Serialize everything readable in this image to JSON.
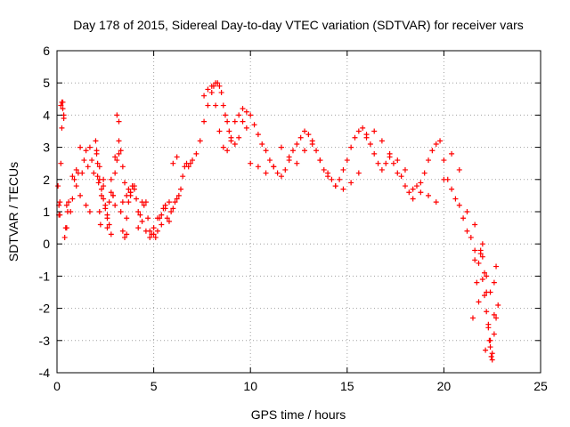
{
  "chart_data": {
    "type": "scatter",
    "title": "Day 178 of 2015, Sidereal Day-to-day VTEC variation (SDTVAR) for receiver vars",
    "xlabel": "GPS time / hours",
    "ylabel": "SDTVAR / TECUs",
    "xlim": [
      0,
      25
    ],
    "ylim": [
      -4,
      6
    ],
    "xticks": [
      "0",
      "5",
      "10",
      "15",
      "20",
      "25"
    ],
    "yticks": [
      "-4",
      "-3",
      "-2",
      "-1",
      "0",
      "1",
      "2",
      "3",
      "4",
      "5",
      "6"
    ],
    "grid": true,
    "marker": "plus",
    "color": "#ff0000",
    "series": [
      {
        "name": "SDTVAR",
        "x": [
          0.05,
          0.1,
          0.15,
          0.2,
          0.25,
          0.3,
          0.35,
          0.4,
          0.45,
          0.5,
          0.55,
          0.6,
          0.7,
          0.8,
          0.9,
          1.0,
          1.1,
          1.2,
          1.3,
          1.4,
          1.5,
          1.6,
          1.7,
          1.8,
          1.9,
          2.0,
          2.05,
          2.1,
          2.15,
          2.2,
          2.25,
          2.3,
          2.4,
          2.5,
          2.6,
          2.7,
          2.8,
          2.9,
          3.0,
          3.1,
          3.2,
          3.3,
          3.4,
          3.5,
          3.6,
          3.7,
          3.8,
          3.9,
          4.0,
          4.1,
          4.2,
          4.3,
          4.4,
          4.5,
          4.6,
          4.7,
          4.8,
          4.9,
          5.0,
          5.1,
          5.2,
          5.3,
          5.4,
          5.5,
          5.6,
          5.7,
          5.8,
          5.9,
          6.0,
          6.1,
          6.2,
          6.3,
          6.4,
          6.5,
          6.6,
          6.7,
          6.8,
          6.9,
          7.0,
          7.2,
          7.4,
          7.6,
          7.8,
          8.0,
          8.1,
          8.2,
          8.3,
          8.4,
          8.5,
          8.6,
          8.7,
          8.8,
          8.9,
          9.0,
          9.2,
          9.4,
          9.6,
          9.8,
          10.0,
          10.2,
          10.4,
          10.6,
          10.8,
          11.0,
          11.2,
          11.4,
          11.6,
          11.8,
          12.0,
          12.2,
          12.4,
          12.6,
          12.8,
          13.0,
          13.2,
          13.4,
          13.6,
          13.8,
          14.0,
          14.2,
          14.4,
          14.6,
          14.8,
          15.0,
          15.2,
          15.4,
          15.6,
          15.8,
          16.0,
          16.2,
          16.4,
          16.6,
          16.8,
          17.0,
          17.2,
          17.4,
          17.6,
          17.8,
          18.0,
          18.2,
          18.4,
          18.6,
          18.8,
          19.0,
          19.2,
          19.4,
          19.6,
          19.8,
          20.0,
          20.2,
          20.4,
          20.6,
          20.8,
          21.0,
          21.2,
          21.4,
          21.6,
          21.8,
          22.0,
          22.1,
          22.2,
          22.3,
          22.4,
          22.5,
          22.6,
          22.7,
          22.8,
          0.1,
          0.15,
          0.2,
          0.25,
          0.3,
          0.35,
          0.5,
          0.8,
          1.0,
          1.2,
          1.5,
          1.7,
          2.2,
          2.4,
          2.6,
          2.8,
          3.0,
          3.2,
          3.4,
          3.6,
          3.8,
          4.0,
          4.2,
          4.4,
          4.6,
          4.8,
          5.0,
          5.2,
          5.4,
          5.6,
          5.8,
          6.0,
          6.2,
          7.6,
          7.8,
          8.0,
          8.2,
          8.4,
          8.6,
          8.8,
          9.0,
          9.2,
          9.4,
          9.6,
          9.8,
          10.0,
          10.4,
          10.8,
          11.2,
          11.6,
          12.0,
          12.4,
          12.8,
          13.2,
          13.6,
          14.0,
          14.4,
          14.8,
          15.2,
          15.6,
          16.0,
          16.4,
          16.8,
          17.2,
          17.6,
          18.0,
          18.4,
          18.8,
          19.2,
          19.6,
          20.0,
          20.4,
          20.8,
          21.2,
          21.6,
          22.0,
          22.2,
          22.4,
          22.6,
          2.05,
          2.1,
          2.2,
          2.3,
          2.4,
          2.5,
          2.6,
          2.7,
          2.8,
          2.9,
          3.0,
          3.1,
          3.2,
          3.3,
          3.4,
          3.5,
          3.6,
          3.7,
          3.8,
          3.9,
          21.6,
          21.7,
          21.8,
          21.9,
          22.0,
          22.1,
          22.2,
          22.3,
          22.4,
          22.5,
          22.6,
          22.7,
          21.5,
          21.9,
          22.15,
          22.35,
          22.45
        ],
        "y": [
          1.8,
          1.2,
          0.9,
          4.3,
          4.4,
          4.2,
          3.9,
          0.2,
          0.5,
          1.2,
          1.0,
          1.3,
          1.0,
          1.4,
          2.0,
          1.8,
          2.2,
          3.0,
          2.2,
          2.6,
          2.9,
          2.4,
          3.0,
          2.6,
          2.2,
          3.2,
          2.8,
          2.1,
          1.9,
          1.0,
          0.6,
          1.5,
          1.8,
          1.2,
          0.5,
          1.3,
          2.0,
          1.5,
          1.2,
          4.0,
          3.8,
          1.0,
          0.4,
          0.2,
          0.8,
          1.7,
          1.5,
          1.8,
          1.7,
          1.4,
          1.0,
          0.9,
          0.7,
          1.2,
          1.3,
          0.8,
          0.4,
          0.3,
          0.3,
          0.2,
          0.4,
          0.8,
          0.9,
          1.1,
          1.2,
          0.8,
          0.7,
          1.0,
          1.1,
          1.3,
          1.4,
          1.5,
          1.7,
          2.1,
          2.4,
          2.5,
          2.4,
          2.5,
          2.6,
          2.8,
          3.2,
          3.8,
          4.3,
          4.7,
          4.9,
          5.0,
          5.0,
          4.9,
          4.7,
          4.3,
          4.0,
          3.8,
          3.5,
          3.2,
          3.1,
          3.3,
          3.8,
          4.1,
          4.0,
          3.7,
          3.4,
          3.1,
          2.9,
          2.6,
          2.4,
          2.2,
          2.1,
          2.3,
          2.6,
          2.9,
          3.1,
          3.3,
          3.5,
          3.4,
          3.2,
          2.9,
          2.6,
          2.3,
          2.2,
          2.0,
          1.8,
          2.0,
          2.3,
          2.6,
          3.0,
          3.3,
          3.5,
          3.6,
          3.4,
          3.1,
          2.8,
          2.5,
          2.3,
          2.5,
          2.8,
          2.5,
          2.2,
          2.1,
          1.8,
          1.6,
          1.7,
          1.8,
          1.9,
          2.2,
          2.6,
          2.9,
          3.1,
          3.2,
          2.6,
          2.0,
          1.7,
          1.4,
          1.2,
          0.8,
          0.4,
          0.2,
          -0.2,
          -0.6,
          -1.1,
          -1.6,
          -2.1,
          -2.6,
          -3.0,
          -3.4,
          -2.8,
          -2.3,
          -1.9,
          0.9,
          1.3,
          2.5,
          3.6,
          4.4,
          4.0,
          0.5,
          2.1,
          2.3,
          1.5,
          1.2,
          1.0,
          2.4,
          2.0,
          0.8,
          1.6,
          2.7,
          2.8,
          1.3,
          0.3,
          1.6,
          1.8,
          0.5,
          1.3,
          0.4,
          0.2,
          0.5,
          0.8,
          0.6,
          1.1,
          1.3,
          2.5,
          2.7,
          4.6,
          4.8,
          4.9,
          4.3,
          3.5,
          3.0,
          2.9,
          3.3,
          3.8,
          4.0,
          4.2,
          3.6,
          2.5,
          2.4,
          2.2,
          2.4,
          3.0,
          2.7,
          2.5,
          2.9,
          3.1,
          2.6,
          2.1,
          1.8,
          1.7,
          1.9,
          2.2,
          3.3,
          3.5,
          3.2,
          2.7,
          2.6,
          2.3,
          1.4,
          1.6,
          1.5,
          1.3,
          2.0,
          2.8,
          2.3,
          1.0,
          0.6,
          -0.4,
          -1.0,
          -1.5,
          -2.2,
          2.9,
          2.5,
          2.0,
          1.7,
          1.4,
          1.1,
          0.9,
          0.6,
          0.3,
          1.5,
          2.2,
          2.6,
          3.2,
          2.9,
          2.4,
          1.9,
          1.5,
          1.3,
          1.6,
          1.8,
          -0.5,
          -1.2,
          -1.8,
          -0.2,
          0.0,
          -0.9,
          -1.5,
          -2.5,
          -3.2,
          -3.6,
          -1.2,
          -0.7,
          -2.3,
          -0.3,
          -3.3,
          -3.0,
          -3.5
        ]
      }
    ]
  }
}
